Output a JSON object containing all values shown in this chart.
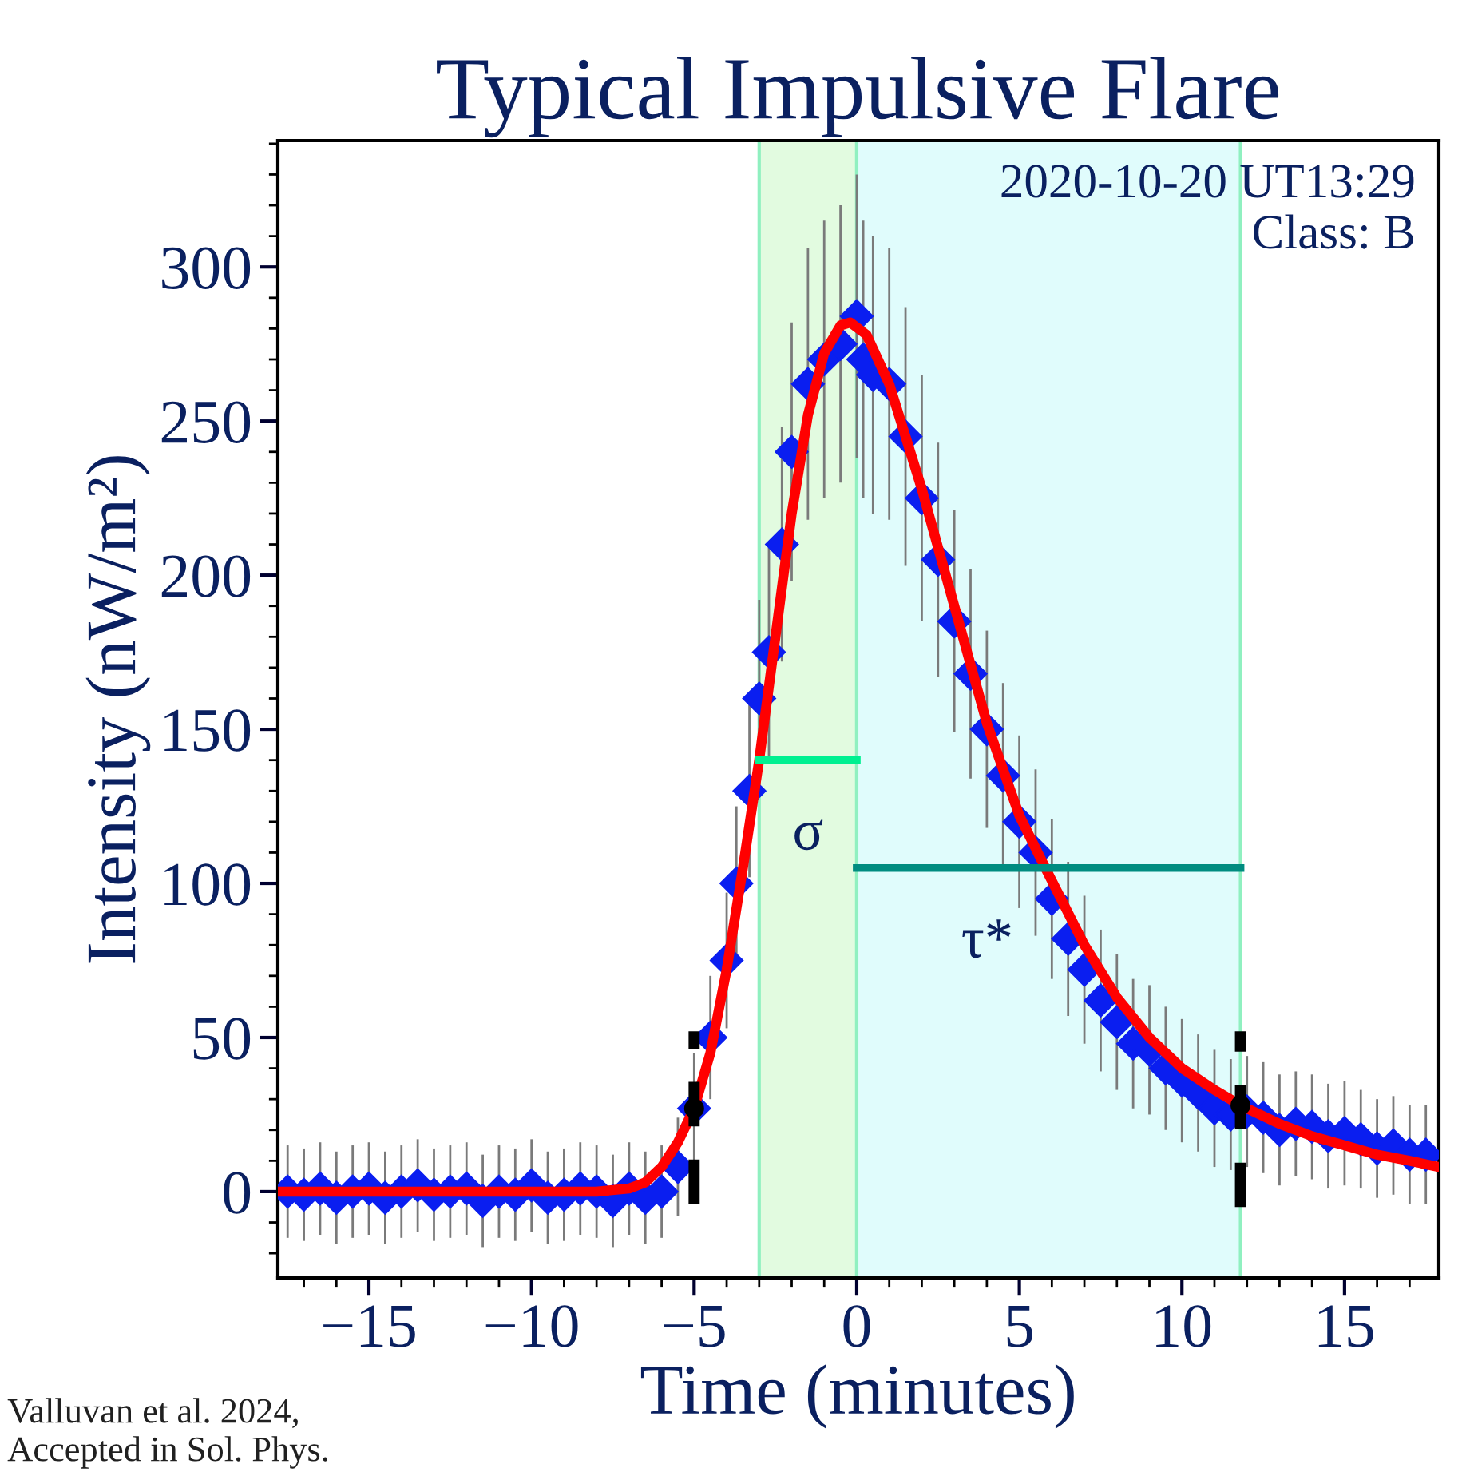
{
  "chart_data": {
    "type": "scatter",
    "title": "Typical Impulsive Flare",
    "xlabel": "Time (minutes)",
    "ylabel": "Intensity (nW/m²)",
    "xlim": [
      -17.8,
      17.9
    ],
    "ylim": [
      -28,
      341
    ],
    "xticks": [
      {
        "value": -15,
        "label": "−15"
      },
      {
        "value": -10,
        "label": "−10"
      },
      {
        "value": -5,
        "label": "−5"
      },
      0,
      5,
      10,
      15
    ],
    "yticks": [
      0,
      50,
      100,
      150,
      200,
      250,
      300
    ],
    "grid": false,
    "bands": [
      {
        "axis": "x",
        "from": -3,
        "to": 0,
        "color": "#e2fbe0"
      },
      {
        "axis": "x",
        "from": 0,
        "to": 11.8,
        "color": "#e0fcfc"
      }
    ],
    "series": [
      {
        "color": "#0a1ef0",
        "marker": "diamond",
        "x": [
          -17.5,
          -17,
          -16.5,
          -16,
          -15.5,
          -15,
          -14.5,
          -14,
          -13.5,
          -13,
          -12.5,
          -12,
          -11.5,
          -11,
          -10.5,
          -10,
          -9.5,
          -9,
          -8.5,
          -8,
          -7.5,
          -7,
          -6.5,
          -6,
          -5.5,
          -5,
          -4.5,
          -4,
          -3.7,
          -3.3,
          -3,
          -2.7,
          -2.3,
          -2,
          -1.5,
          -1,
          -0.5,
          0,
          0.2,
          0.5,
          1,
          1.5,
          2,
          2.5,
          3,
          3.5,
          4,
          4.5,
          5,
          5.5,
          6,
          6.5,
          7,
          7.5,
          8,
          8.5,
          9,
          9.5,
          10,
          10.5,
          11,
          11.5,
          12,
          12.5,
          13,
          13.5,
          14,
          14.5,
          15,
          15.5,
          16,
          16.5,
          17,
          17.5
        ],
        "values": [
          0,
          -1,
          1,
          -2,
          0,
          1,
          -2,
          0,
          2,
          -1,
          0,
          1,
          -3,
          0,
          -1,
          2,
          -2,
          -1,
          1,
          0,
          -3,
          1,
          -2,
          0,
          8,
          27,
          50,
          75,
          100,
          130,
          160,
          175,
          210,
          240,
          262,
          270,
          275,
          284,
          270,
          265,
          262,
          245,
          225,
          205,
          185,
          168,
          150,
          135,
          120,
          110,
          95,
          82,
          72,
          62,
          55,
          48,
          46,
          40,
          36,
          32,
          27,
          25,
          26,
          24,
          20,
          22,
          21,
          18,
          19,
          17,
          14,
          15,
          12,
          12
        ],
        "errors": [
          15,
          15,
          15,
          15,
          15,
          15,
          15,
          15,
          15,
          15,
          15,
          15,
          15,
          15,
          15,
          15,
          15,
          15,
          15,
          15,
          15,
          15,
          15,
          15,
          16,
          18,
          20,
          22,
          25,
          28,
          32,
          34,
          38,
          42,
          44,
          45,
          45,
          46,
          45,
          45,
          44,
          42,
          40,
          38,
          36,
          34,
          32,
          30,
          28,
          27,
          26,
          25,
          24,
          23,
          22,
          21,
          21,
          20,
          20,
          19,
          19,
          18,
          18,
          18,
          18,
          17,
          17,
          17,
          17,
          16,
          16,
          16,
          16,
          16
        ]
      },
      {
        "type": "line",
        "color": "#ff0000",
        "x": [
          -17.8,
          -8,
          -7,
          -6.5,
          -6,
          -5.5,
          -5,
          -4.5,
          -4,
          -3.5,
          -3,
          -2.5,
          -2,
          -1.5,
          -1,
          -0.5,
          -0.2,
          0.3,
          1,
          2,
          3,
          4,
          5,
          5.8,
          7,
          8,
          9,
          10,
          11,
          11.8,
          13,
          14,
          15,
          16,
          17,
          17.9
        ],
        "values": [
          0,
          0,
          1,
          3,
          8,
          16,
          27,
          45,
          72,
          105,
          140,
          180,
          220,
          252,
          272,
          281,
          282,
          278,
          262,
          228,
          190,
          152,
          122,
          105,
          80,
          63,
          50,
          40,
          33,
          28,
          22,
          18,
          15,
          12,
          10,
          8
        ]
      },
      {
        "type": "scatter",
        "color": "#000000",
        "marker": "circle",
        "line_style": "dashed",
        "x": [
          -5,
          11.8
        ],
        "values": [
          27,
          28
        ],
        "errors": [
          [
            -4,
            52
          ],
          [
            -5,
            52
          ]
        ]
      },
      {
        "type": "line",
        "color": "#00f090",
        "marker": "none",
        "x": [
          -3,
          0
        ],
        "values": [
          140,
          140
        ]
      },
      {
        "type": "line",
        "color": "#008c80",
        "marker": "none",
        "x": [
          0,
          11.8
        ],
        "values": [
          105,
          105
        ]
      }
    ],
    "annotations": [
      "σ",
      "τ*",
      "2020-10-20 UT13:29\nClass: B",
      "Valluvan et al. 2024,\nAccepted in Sol. Phys."
    ]
  }
}
